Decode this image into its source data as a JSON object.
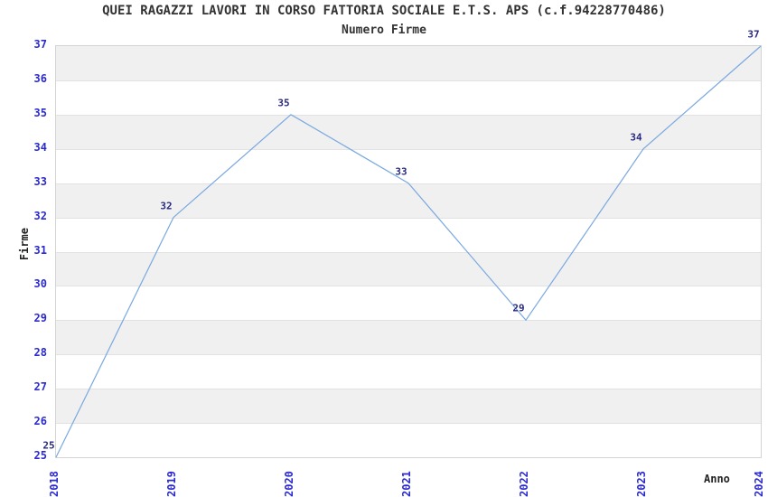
{
  "chart": {
    "title": "QUEI RAGAZZI LAVORI IN CORSO FATTORIA SOCIALE E.T.S. APS (c.f.94228770486)",
    "subtitle": "Numero Firme",
    "y_axis_title": "Firme",
    "x_axis_title": "Anno"
  },
  "chart_data": {
    "type": "line",
    "title": "QUEI RAGAZZI LAVORI IN CORSO FATTORIA SOCIALE E.T.S. APS (c.f.94228770486)",
    "subtitle": "Numero Firme",
    "xlabel": "Anno",
    "ylabel": "Firme",
    "categories": [
      "2018",
      "2019",
      "2020",
      "2021",
      "2022",
      "2023",
      "2024"
    ],
    "values": [
      25,
      32,
      35,
      33,
      29,
      34,
      37
    ],
    "data_labels_visible": true,
    "ylim": [
      25,
      37
    ],
    "ytick_step": 1,
    "yticks": [
      25,
      26,
      27,
      28,
      29,
      30,
      31,
      32,
      33,
      34,
      35,
      36,
      37
    ],
    "grid": "horizontal-alternating-bands",
    "legend_position": "none",
    "colors": {
      "line": "#79a8e0",
      "tick_label": "#2a2ad0",
      "data_label": "#2a2a80",
      "band_gray": "#f0f0f0",
      "band_white": "#ffffff",
      "plot_border": "#d4d4d4",
      "gridline": "#e2e2e2",
      "title_text": "#333333",
      "axis_title_text": "#222222"
    }
  }
}
